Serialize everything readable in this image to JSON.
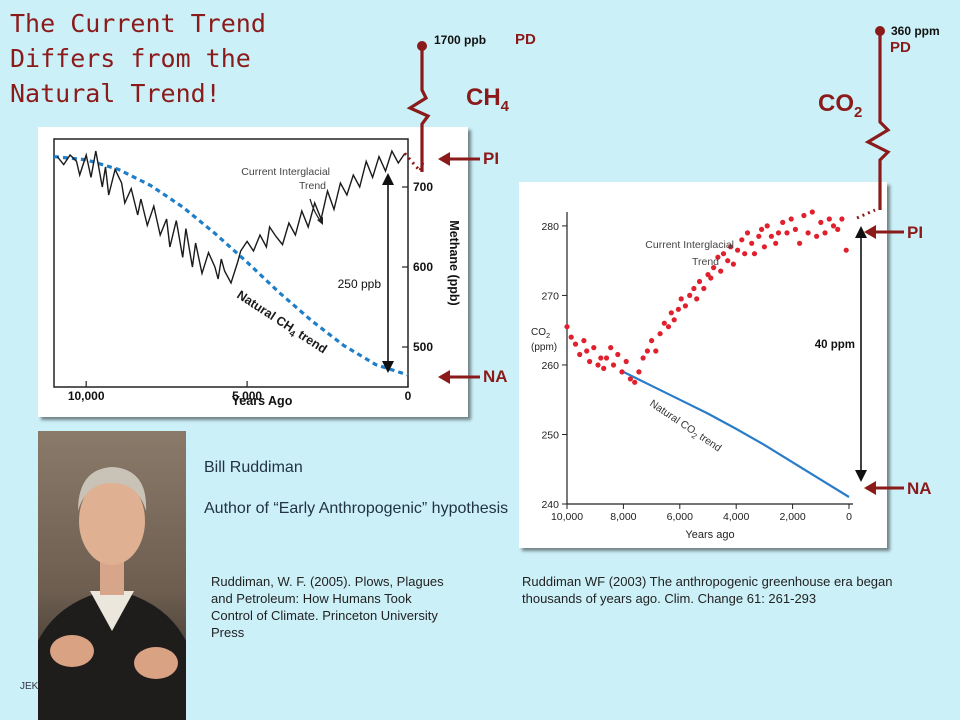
{
  "title": "The Current Trend Differs from the Natural Trend!",
  "ch4": {
    "gas_main": "CH",
    "gas_sub": "4",
    "pd_value": "1700 ppb",
    "pd_label": "PD",
    "pi_label": "PI",
    "na_label": "NA"
  },
  "co2": {
    "gas_main": "CO",
    "gas_sub": "2",
    "pd_value": "360 ppm",
    "pd_label": "PD",
    "pi_label": "PI",
    "na_label": "NA"
  },
  "person": {
    "name": "Bill Ruddiman",
    "role": "Author of “Early Anthropogenic” hypothesis"
  },
  "refs": {
    "book": "Ruddiman, W. F. (2005). Plows, Plagues and Petroleum: How Humans Took Control of Climate. Princeton University Press",
    "paper": "Ruddiman WF (2003) The anthropogenic greenhouse era began thousands of years ago. Clim. Change 61: 261-293"
  },
  "footer": "JEK",
  "colors": {
    "accent": "#8b1a1a",
    "background": "#ccf0f8",
    "methane_line": "#1a1a1a",
    "natural_trend_ch4": "#1e7ec8",
    "co2_points": "#e0202c",
    "natural_trend_co2": "#2a7cc8"
  },
  "chart_data": [
    {
      "type": "line",
      "xlabel": "Years Ago",
      "ylabel": "Methane (ppb)",
      "xlim": [
        11000,
        0
      ],
      "ylim": [
        450,
        760
      ],
      "xticks": [
        "10,000",
        "5,000",
        "0"
      ],
      "yticks": [
        "500",
        "600",
        "700"
      ],
      "annotations": {
        "trend_label": "Current Interglacial Trend",
        "natural_trend_label": "Natural CH4 trend",
        "diff_label": "250 ppb"
      },
      "series": [
        {
          "kind": "measured",
          "x": [
            10900,
            10700,
            10500,
            10300,
            10200,
            10000,
            9850,
            9700,
            9500,
            9400,
            9300,
            9100,
            8900,
            8800,
            8600,
            8400,
            8300,
            8100,
            7900,
            7700,
            7500,
            7400,
            7200,
            7000,
            6900,
            6700,
            6600,
            6400,
            6200,
            6000,
            5900,
            5800,
            5700,
            5500,
            5300,
            5200,
            5000,
            4800,
            4600,
            4400,
            4300,
            4100,
            3900,
            3700,
            3500,
            3300,
            3100,
            2900,
            2700,
            2500,
            2300,
            2100,
            1900,
            1700,
            1500,
            1300,
            1100,
            900,
            700,
            500,
            300,
            100
          ],
          "y": [
            738,
            728,
            740,
            732,
            715,
            740,
            712,
            745,
            700,
            725,
            690,
            722,
            705,
            680,
            698,
            665,
            685,
            652,
            676,
            640,
            660,
            625,
            658,
            612,
            648,
            600,
            630,
            592,
            618,
            600,
            585,
            610,
            595,
            580,
            605,
            620,
            632,
            620,
            640,
            625,
            650,
            638,
            628,
            655,
            640,
            670,
            650,
            680,
            660,
            695,
            672,
            705,
            690,
            715,
            700,
            732,
            712,
            738,
            720,
            745,
            730,
            742
          ]
        },
        {
          "kind": "natural",
          "name": "Natural CH4 trend",
          "x": [
            11000,
            10000,
            9000,
            8000,
            7000,
            6000,
            5000,
            4000,
            3000,
            2000,
            1000,
            0
          ],
          "y": [
            738,
            734,
            722,
            702,
            675,
            642,
            606,
            568,
            533,
            502,
            478,
            465
          ]
        }
      ]
    },
    {
      "type": "scatter",
      "xlabel": "Years ago",
      "ylabel": "CO2 (ppm)",
      "xlim": [
        10000,
        0
      ],
      "ylim": [
        240,
        282
      ],
      "xticks": [
        "10,000",
        "8,000",
        "6,000",
        "4,000",
        "2,000",
        "0"
      ],
      "yticks": [
        "240",
        "250",
        "260",
        "270",
        "280"
      ],
      "annotations": {
        "trend_label": "Current Interglacial Trend",
        "natural_trend_label": "Natural CO2 trend",
        "diff_label": "40 ppm"
      },
      "series": [
        {
          "kind": "measured",
          "x": [
            10000,
            9850,
            9700,
            9550,
            9400,
            9300,
            9200,
            9050,
            8900,
            8800,
            8700,
            8600,
            8450,
            8350,
            8200,
            8050,
            7900,
            7750,
            7600,
            7450,
            7300,
            7150,
            7000,
            6850,
            6700,
            6550,
            6400,
            6300,
            6200,
            6050,
            5950,
            5800,
            5650,
            5500,
            5400,
            5300,
            5150,
            5000,
            4900,
            4800,
            4650,
            4550,
            4450,
            4300,
            4200,
            4100,
            3950,
            3800,
            3700,
            3600,
            3450,
            3350,
            3200,
            3100,
            3000,
            2900,
            2750,
            2600,
            2500,
            2350,
            2200,
            2050,
            1900,
            1750,
            1600,
            1450,
            1300,
            1150,
            1000,
            850,
            700,
            550,
            400,
            250,
            100
          ],
          "y": [
            265.5,
            264,
            263,
            261.5,
            263.5,
            262,
            260.5,
            262.5,
            260,
            261,
            259.5,
            261,
            262.5,
            260,
            261.5,
            259,
            260.5,
            258,
            257.5,
            259,
            261,
            262,
            263.5,
            262,
            264.5,
            266,
            265.5,
            267.5,
            266.5,
            268,
            269.5,
            268.5,
            270,
            271,
            269.5,
            272,
            271,
            273,
            272.5,
            274,
            275.5,
            273.5,
            276,
            275,
            277,
            274.5,
            276.5,
            278,
            276,
            279,
            277.5,
            276,
            278.5,
            279.5,
            277,
            280,
            278.5,
            277.5,
            279,
            280.5,
            279,
            281,
            279.5,
            277.5,
            281.5,
            279,
            282,
            278.5,
            280.5,
            279,
            281,
            280,
            279.5,
            281,
            276.5
          ]
        },
        {
          "kind": "natural",
          "name": "Natural CO2 trend",
          "x": [
            8000,
            7000,
            6000,
            5000,
            4000,
            3000,
            2000,
            1000,
            0
          ],
          "y": [
            259,
            257,
            255,
            253,
            250.8,
            248.5,
            246,
            243.5,
            241
          ]
        }
      ]
    }
  ]
}
